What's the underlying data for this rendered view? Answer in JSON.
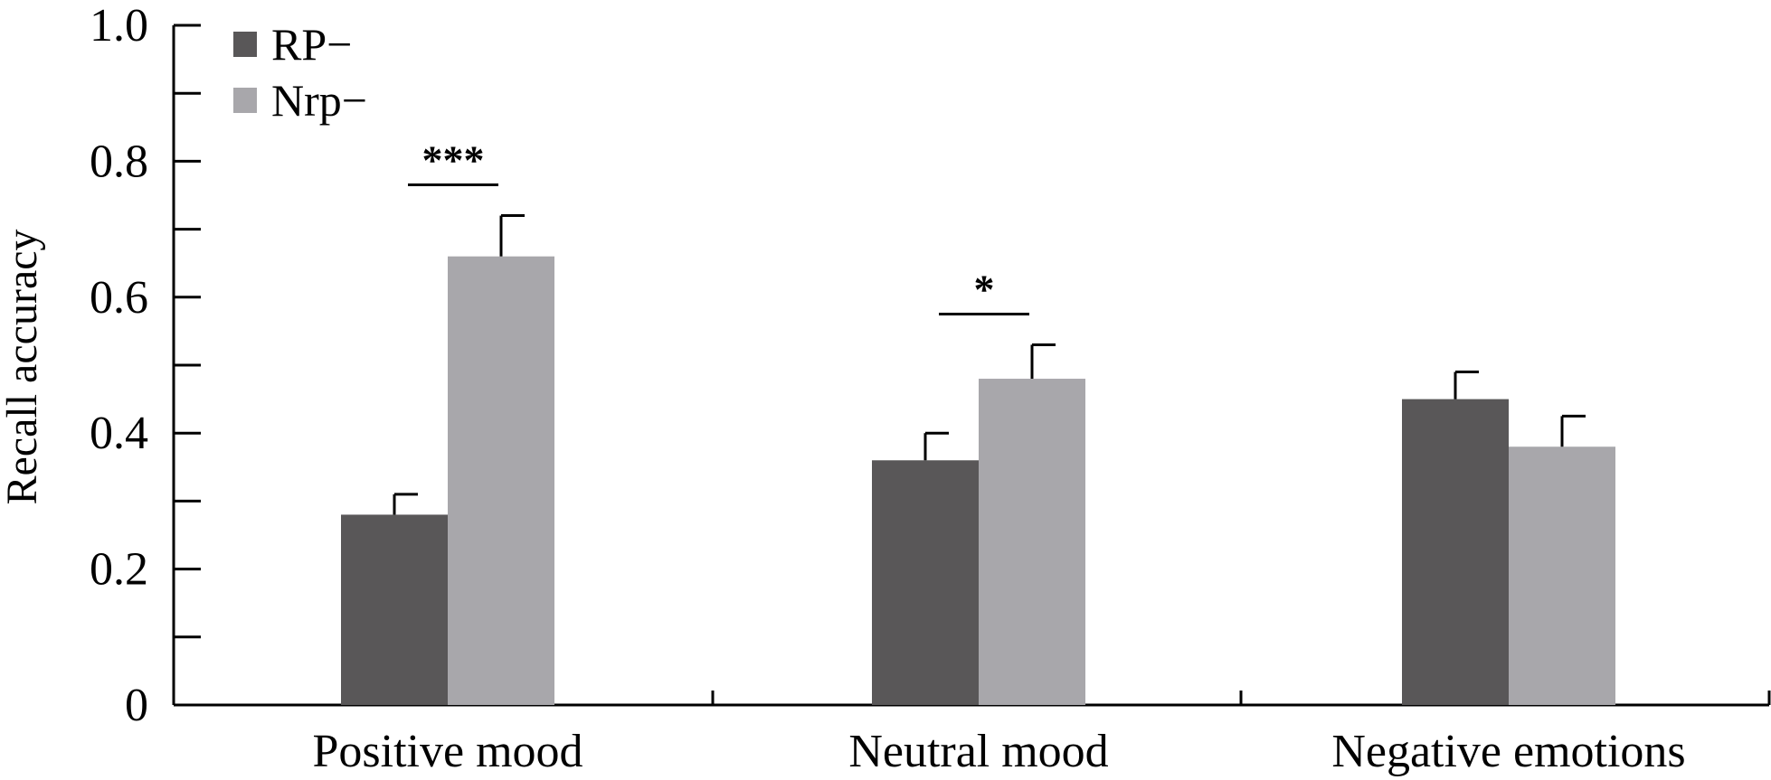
{
  "chart_data": {
    "type": "bar",
    "title": "",
    "xlabel": "",
    "ylabel": "Recall accuracy",
    "ylim": [
      0,
      1.0
    ],
    "yticks": [
      0,
      0.2,
      0.4,
      0.6,
      0.8,
      1.0
    ],
    "ytick_labels": [
      "0",
      "0.2",
      "0.4",
      "0.6",
      "0.8",
      "1.0"
    ],
    "minor_ytick_step": 0.1,
    "grid": false,
    "legend_position": "top-left",
    "categories": [
      "Positive mood",
      "Neutral mood",
      "Negative emotions"
    ],
    "series": [
      {
        "name": "RP−",
        "color": "#595758",
        "values": [
          0.28,
          0.36,
          0.45
        ],
        "errors": [
          0.03,
          0.04,
          0.04
        ]
      },
      {
        "name": "Nrp−",
        "color": "#a8a7ab",
        "values": [
          0.66,
          0.48,
          0.38
        ],
        "errors": [
          0.06,
          0.05,
          0.045
        ]
      }
    ],
    "annotations": [
      {
        "category_index": 0,
        "label": "***"
      },
      {
        "category_index": 1,
        "label": "*"
      }
    ]
  }
}
